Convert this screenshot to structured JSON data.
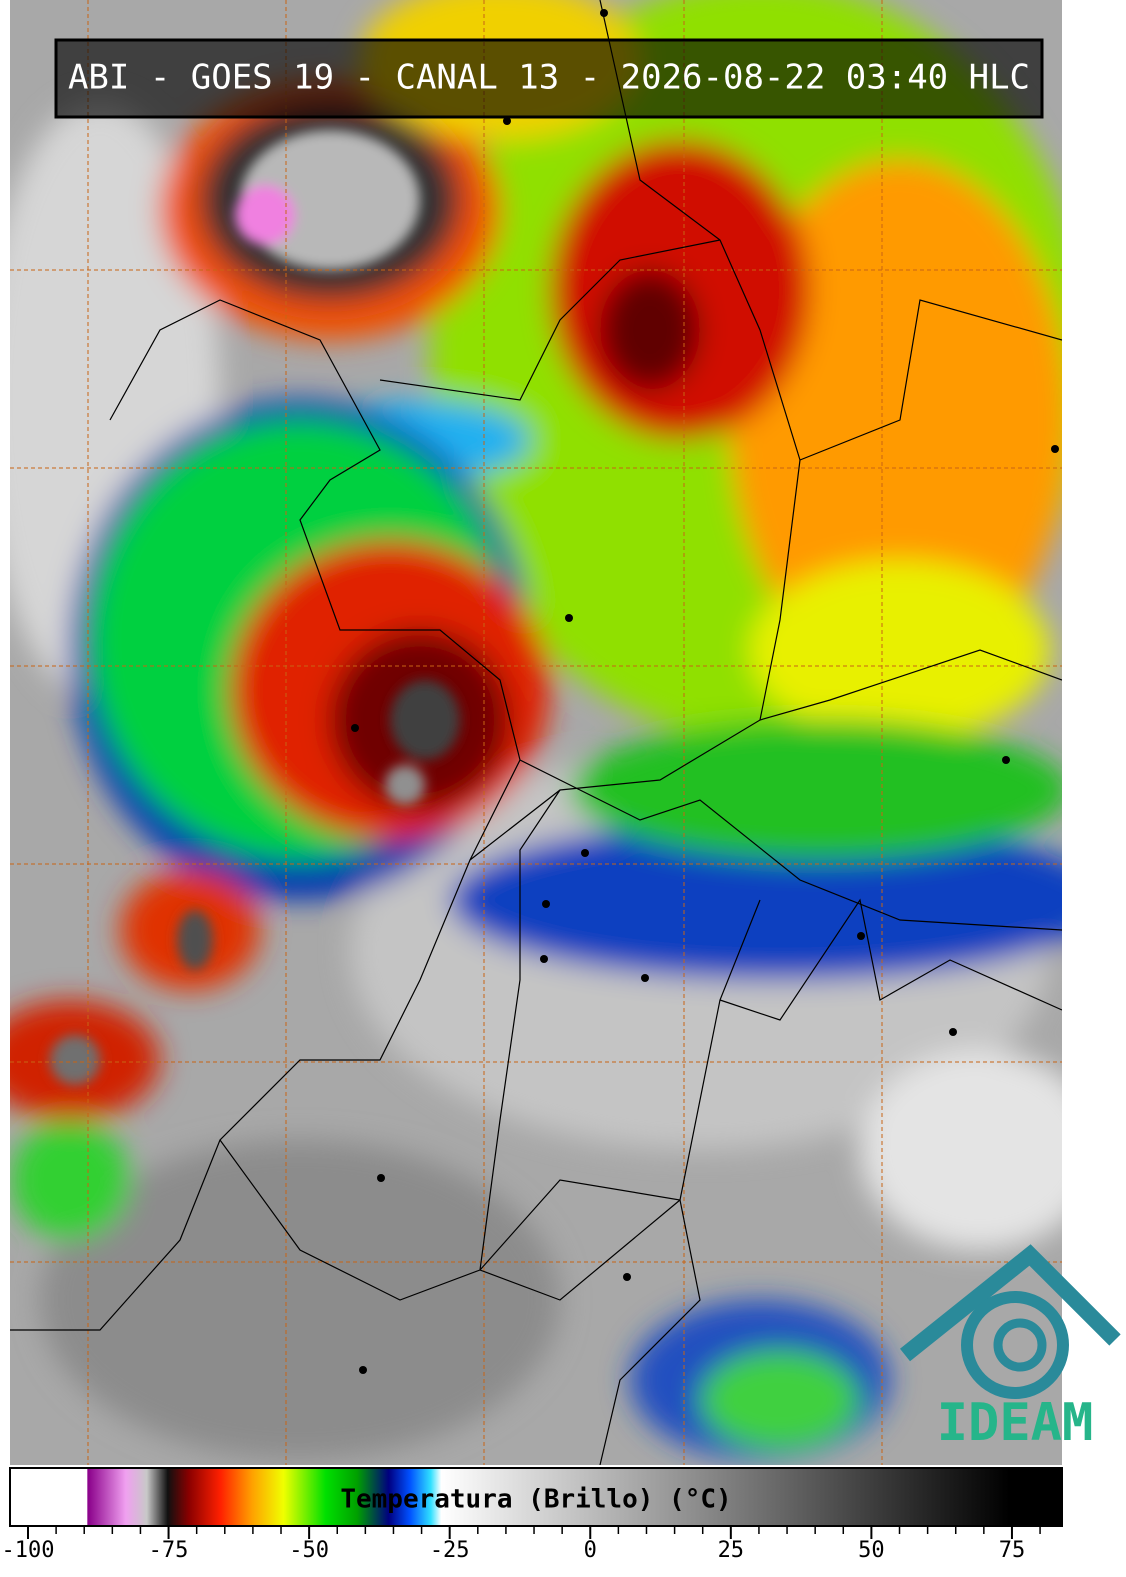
{
  "header": {
    "title": "ABI - GOES 19 - CANAL 13 - 2026-08-22 03:40 HLC"
  },
  "colorbar": {
    "label": "Temperatura (Brillo) (°C)",
    "range": [
      -103.2,
      83.9
    ],
    "ticks": [
      -100,
      -75,
      -50,
      -25,
      0,
      25,
      50,
      75
    ],
    "minor_ticks": [
      -95,
      -90,
      -85,
      -80,
      -70,
      -65,
      -60,
      -55,
      -45,
      -40,
      -35,
      -30,
      -20,
      -15,
      -10,
      -5,
      5,
      10,
      15,
      20,
      30,
      35,
      40,
      45,
      55,
      60,
      65,
      70,
      80
    ]
  },
  "logo": {
    "text": "IDEAM"
  }
}
